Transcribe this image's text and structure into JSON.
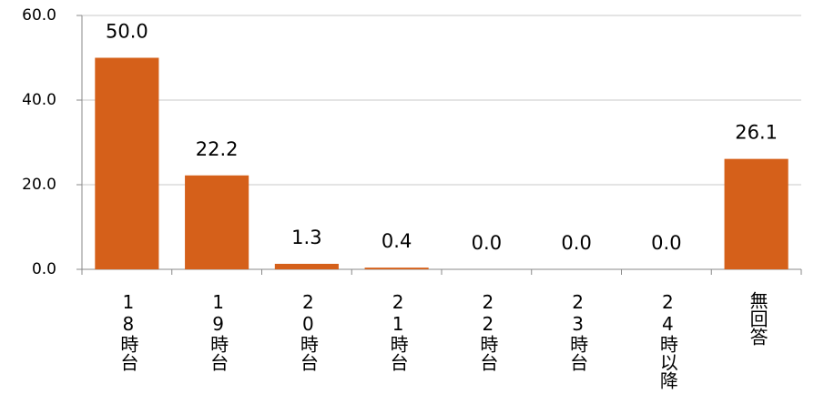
{
  "chart_data": {
    "type": "bar",
    "categories": [
      "18時台",
      "19時台",
      "20時台",
      "21時台",
      "22時台",
      "23時台",
      "24時以降",
      "無回答"
    ],
    "values": [
      50.0,
      22.2,
      1.3,
      0.4,
      0.0,
      0.0,
      0.0,
      26.1
    ],
    "value_labels": [
      "50.0",
      "22.2",
      "1.3",
      "0.4",
      "0.0",
      "0.0",
      "0.0",
      "26.1"
    ],
    "color": "#d5601a",
    "ylim": [
      0,
      60
    ],
    "yticks": [
      {
        "value": 0,
        "label": "0.0"
      },
      {
        "value": 20,
        "label": "20.0"
      },
      {
        "value": 40,
        "label": "40.0"
      },
      {
        "value": 60,
        "label": "60.0"
      }
    ],
    "grid": true
  }
}
